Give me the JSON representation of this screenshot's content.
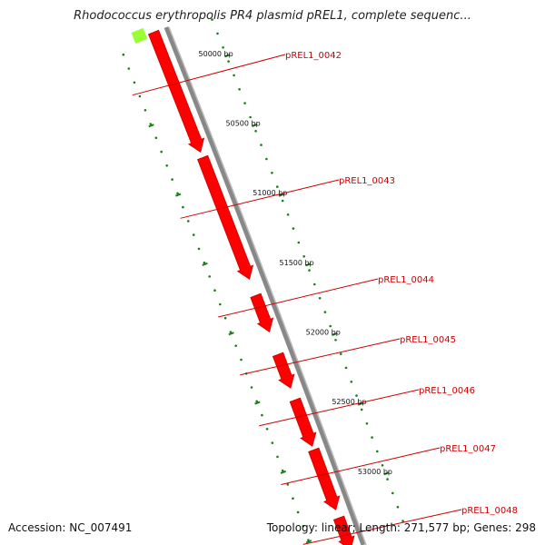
{
  "title": "Rhodococcus erythropolis PR4 plasmid pREL1, complete sequenc...",
  "accession": "Accession: NC_007491",
  "summary": "Topology: linear; Length: 271,577 bp; Genes: 298",
  "colors": {
    "backbone": "#888888",
    "gene_fill": "#ff0000",
    "gene_edge": "#cc0000",
    "tick": "#1a7f1a",
    "label": "#cc0000",
    "prior_gene": "#99ff33"
  },
  "bp_ticks": [
    {
      "bp": 50000,
      "label": "50000 bp"
    },
    {
      "bp": 50500,
      "label": "50500 bp"
    },
    {
      "bp": 51000,
      "label": "51000 bp"
    },
    {
      "bp": 51500,
      "label": "51500 bp"
    },
    {
      "bp": 52000,
      "label": "52000 bp"
    },
    {
      "bp": 52500,
      "label": "52500 bp"
    },
    {
      "bp": 53000,
      "label": "53000 bp"
    }
  ],
  "genes": [
    {
      "name": "pREL1_0042"
    },
    {
      "name": "pREL1_0043"
    },
    {
      "name": "pREL1_0044"
    },
    {
      "name": "pREL1_0045"
    },
    {
      "name": "pREL1_0046"
    },
    {
      "name": "pREL1_0047"
    },
    {
      "name": "pREL1_0048"
    }
  ]
}
